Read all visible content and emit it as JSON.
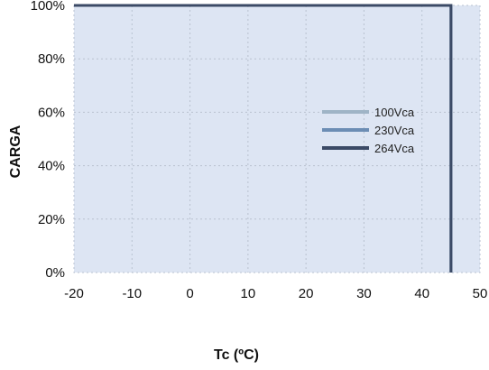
{
  "chart_data": {
    "type": "line",
    "title": "",
    "xlabel": "Tc (ºC)",
    "ylabel": "CARGA",
    "xlim": [
      -20,
      50
    ],
    "ylim": [
      0,
      100
    ],
    "x_ticks": [
      -20,
      -10,
      0,
      10,
      20,
      30,
      40,
      50
    ],
    "y_ticks": [
      0,
      20,
      40,
      60,
      80,
      100
    ],
    "x_tick_labels": [
      "-20",
      "-10",
      "0",
      "10",
      "20",
      "30",
      "40",
      "50"
    ],
    "y_tick_labels": [
      "0%",
      "20%",
      "40%",
      "60%",
      "80%",
      "100%"
    ],
    "grid": true,
    "legend_position": "right",
    "series": [
      {
        "name": "100Vca",
        "color": "#9fb4c6",
        "x": [
          -20,
          45,
          45
        ],
        "y": [
          100,
          100,
          0
        ]
      },
      {
        "name": "230Vca",
        "color": "#6c8db4",
        "x": [
          -20,
          45,
          45
        ],
        "y": [
          100,
          100,
          0
        ]
      },
      {
        "name": "264Vca",
        "color": "#3b4a66",
        "x": [
          -20,
          45,
          45
        ],
        "y": [
          100,
          100,
          0
        ]
      }
    ],
    "colors": {
      "plot_background": "#dde5f3",
      "grid": "#b9c2d0"
    }
  }
}
